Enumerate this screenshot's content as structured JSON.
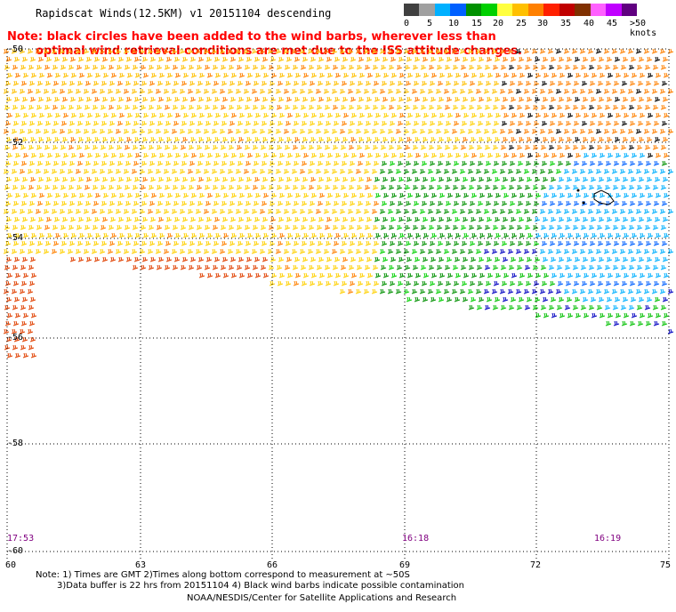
{
  "header": {
    "title": "Rapidscat Winds(12.5KM) v1 20151104 descending",
    "note_line1": "Note: black circles have been added to the wind barbs, wherever less than",
    "note_line2": "optimal wind retrieval conditions are met due to the ISS attitude changes."
  },
  "color_scale": {
    "unit": "knots",
    "labels": [
      "0",
      "5",
      "10",
      "15",
      "20",
      "25",
      "30",
      "35",
      "40",
      "45",
      ">50 knots"
    ],
    "colors": [
      "#404040",
      "#a0a0a0",
      "#00b0ff",
      "#0060ff",
      "#009000",
      "#00d000",
      "#ffff40",
      "#ffc000",
      "#ff8000",
      "#ff2000",
      "#c00000",
      "#803000",
      "#ff60ff",
      "#c000ff",
      "#600080"
    ]
  },
  "axes": {
    "lat_labels": [
      "-50",
      "-52",
      "-54",
      "-56",
      "-58",
      "-60"
    ],
    "lon_labels": [
      "60",
      "63",
      "66",
      "69",
      "72",
      "75"
    ]
  },
  "times": {
    "left": "17:53",
    "middle": "16:18",
    "right": "16:19"
  },
  "footer": {
    "line1": "Note: 1) Times are GMT 2)Times along bottom correspond to measurement at ~50S",
    "line2": "3)Data buffer is 22 hrs from 20151104 4) Black wind barbs indicate possible contamination",
    "line3": "NOAA/NESDIS/Center for Satellite Applications and Research"
  }
}
